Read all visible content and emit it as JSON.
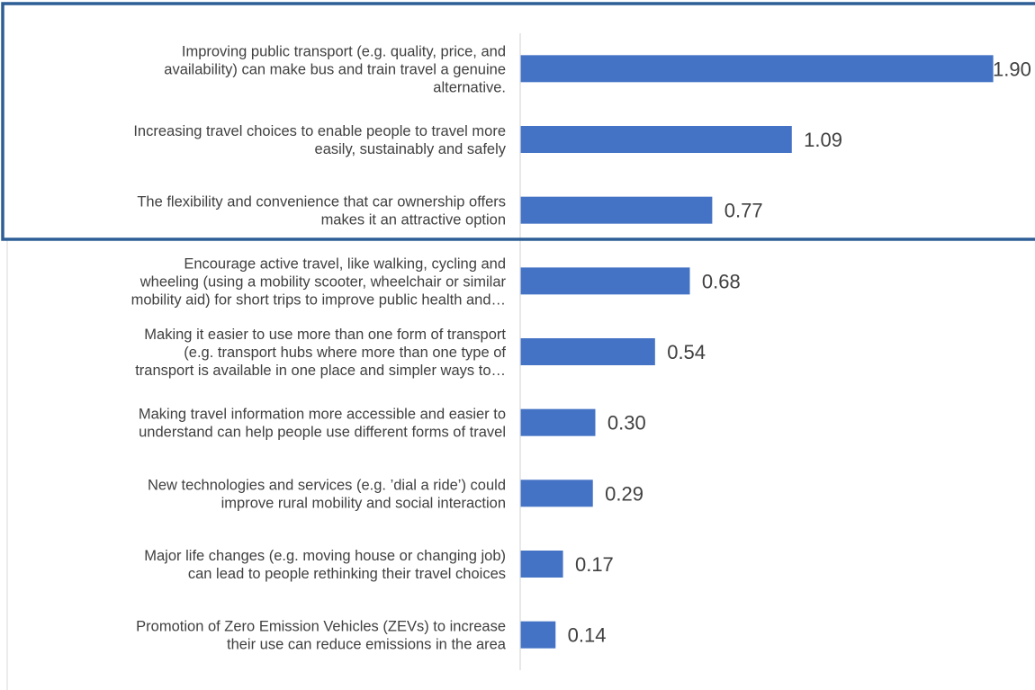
{
  "chart_data": {
    "type": "bar",
    "orientation": "horizontal",
    "title": "",
    "xlabel": "",
    "ylabel": "",
    "grid": false,
    "bar_color": "#4472C4",
    "highlight_box_color": "#2E5E96",
    "highlighted_count": 3,
    "categories": [
      [
        "Improving public transport (e.g. quality, price, and",
        "availability) can make bus and train travel a genuine",
        "alternative."
      ],
      [
        "Increasing travel choices to enable people to travel more",
        "easily, sustainably and safely"
      ],
      [
        "The flexibility and convenience that car ownership offers",
        "makes it an attractive option"
      ],
      [
        "Encourage active travel, like walking, cycling and",
        "wheeling (using a mobility scooter, wheelchair or similar",
        "mobility aid) for short trips to improve public health and…"
      ],
      [
        "Making it easier to use more than one form of transport",
        "(e.g. transport hubs where more than one type of",
        "transport is available in one place and simpler ways to…"
      ],
      [
        "Making travel information more accessible and easier to",
        "understand can help people use different forms of travel"
      ],
      [
        "New technologies and services (e.g. ’dial a ride’) could",
        "improve rural mobility and social interaction"
      ],
      [
        "Major life changes (e.g. moving house or changing job)",
        "can lead to people rethinking their travel choices"
      ],
      [
        "Promotion of Zero Emission Vehicles (ZEVs) to increase",
        "their use can reduce emissions in the area"
      ]
    ],
    "values": [
      1.9,
      1.09,
      0.77,
      0.68,
      0.54,
      0.3,
      0.29,
      0.17,
      0.14
    ],
    "value_labels": [
      "1.90",
      "1.09",
      "0.77",
      "0.68",
      "0.54",
      "0.30",
      "0.29",
      "0.17",
      "0.14"
    ]
  }
}
